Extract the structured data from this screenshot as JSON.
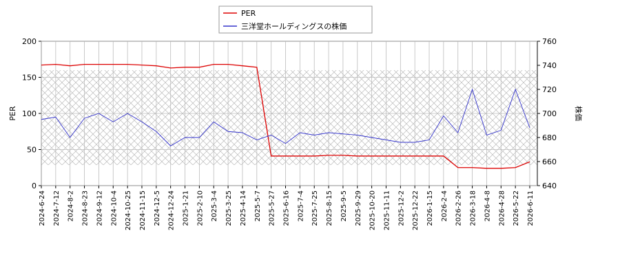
{
  "chart_data": {
    "type": "line",
    "categories": [
      "2024-6-24",
      "2024-7-12",
      "2024-8-2",
      "2024-8-23",
      "2024-9-12",
      "2024-10-4",
      "2024-10-25",
      "2024-11-15",
      "2024-12-5",
      "2024-12-24",
      "2025-1-21",
      "2025-2-10",
      "2025-3-4",
      "2025-3-25",
      "2025-4-14",
      "2025-5-7",
      "2025-5-27",
      "2025-6-16",
      "2025-7-4",
      "2025-7-25",
      "2025-8-15",
      "2025-9-5",
      "2025-9-29",
      "2025-10-20",
      "2025-11-11",
      "2025-12-2",
      "2025-12-22",
      "2026-1-15",
      "2026-2-4",
      "2026-2-26",
      "2026-3-18",
      "2026-4-8",
      "2026-4-28",
      "2026-5-22",
      "2026-6-11"
    ],
    "series": [
      {
        "name": "PER",
        "color": "#dd0000",
        "values": [
          167,
          168,
          166,
          168,
          168,
          168,
          168,
          167,
          166,
          163,
          164,
          164,
          168,
          168,
          166,
          164,
          41,
          41,
          41,
          41,
          42,
          42,
          41,
          41,
          41,
          41,
          41,
          41,
          41,
          25,
          25,
          24,
          24,
          25,
          33
        ]
      },
      {
        "name": "三洋堂ホールディングスの株価",
        "color": "#3333cc",
        "axis": "y2",
        "values": [
          695,
          697,
          680,
          696,
          700,
          693,
          700,
          693,
          685,
          673,
          680,
          680,
          693,
          685,
          684,
          678,
          682,
          675,
          684,
          682,
          684,
          683,
          682,
          680,
          678,
          676,
          676,
          678,
          698,
          684,
          720,
          682,
          686,
          720,
          688
        ]
      }
    ],
    "ylabel": "PER",
    "y2label": "株価",
    "ylim": [
      0,
      200
    ],
    "yticks": [
      0,
      50,
      100,
      150,
      200
    ],
    "y2lim": [
      640,
      760
    ],
    "y2ticks": [
      640,
      660,
      680,
      700,
      720,
      740,
      760
    ],
    "grid": true
  }
}
